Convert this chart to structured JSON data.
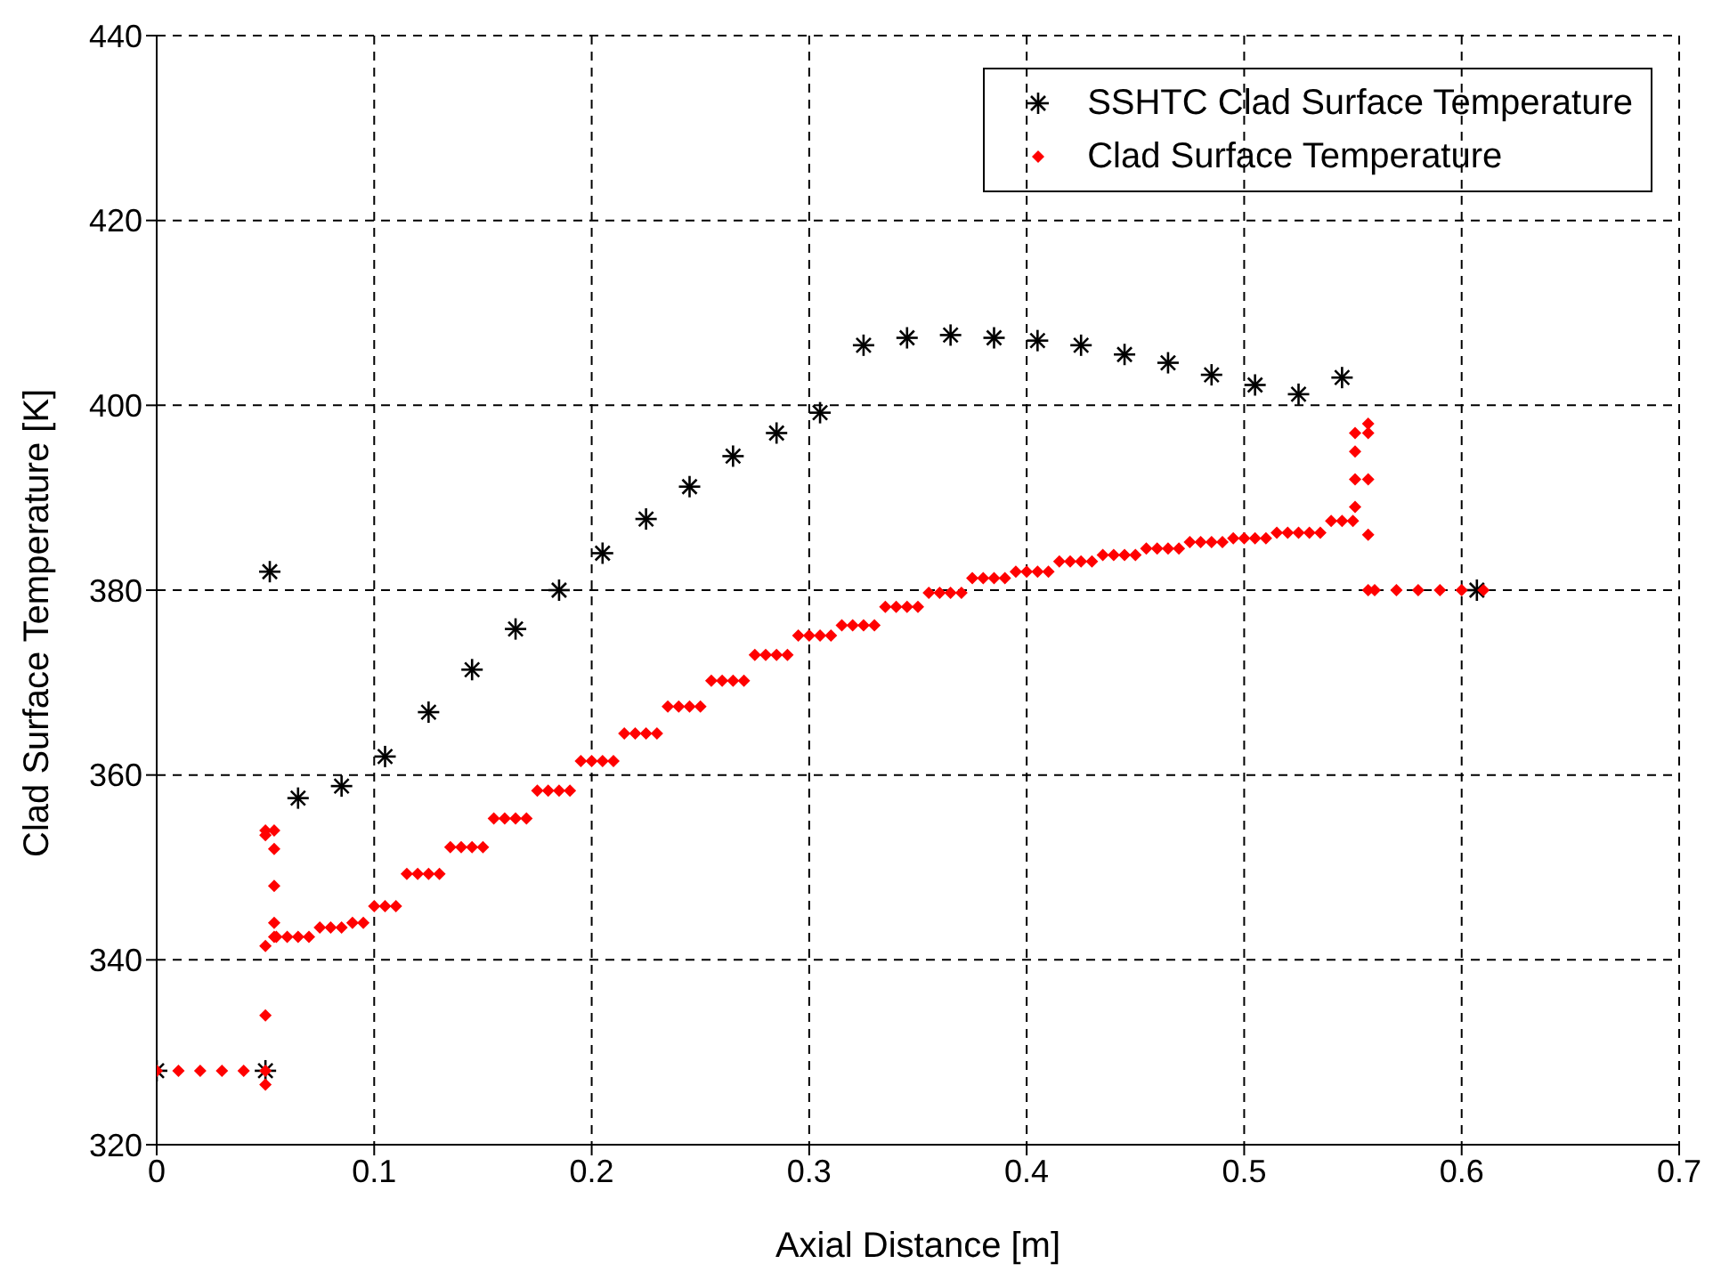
{
  "chart_data": {
    "type": "scatter",
    "xlabel": "Axial Distance [m]",
    "ylabel": "Clad Surface Temperature [K]",
    "xlim": [
      0,
      0.7
    ],
    "xticks": [
      0,
      0.1,
      0.2,
      0.3,
      0.4,
      0.5,
      0.6,
      0.7
    ],
    "ylim": [
      320,
      440
    ],
    "yticks": [
      320,
      340,
      360,
      380,
      400,
      420,
      440
    ],
    "grid": true,
    "legend": "top right",
    "series": [
      {
        "name": "SSHTC Clad Surface Temperature",
        "color": "#000000",
        "marker": "cross",
        "x": [
          0,
          0.05,
          0.052,
          0.065,
          0.085,
          0.105,
          0.125,
          0.145,
          0.165,
          0.185,
          0.205,
          0.225,
          0.245,
          0.265,
          0.285,
          0.305,
          0.325,
          0.345,
          0.365,
          0.385,
          0.405,
          0.425,
          0.445,
          0.465,
          0.485,
          0.505,
          0.525,
          0.545,
          0.607
        ],
        "values": [
          328,
          328,
          382,
          357.5,
          358.8,
          362,
          366.8,
          371.4,
          375.8,
          380,
          384,
          387.7,
          391.2,
          394.5,
          397,
          399.2,
          406.5,
          407.3,
          407.6,
          407.3,
          407,
          406.5,
          405.5,
          404.6,
          403.3,
          402.2,
          401.2,
          403,
          380
        ]
      },
      {
        "name": "Clad Surface Temperature",
        "color": "#ff0000",
        "marker": "diamond",
        "x": [
          0,
          0.01,
          0.02,
          0.03,
          0.04,
          0.05,
          0.05,
          0.05,
          0.05,
          0.05,
          0.05,
          0.054,
          0.054,
          0.054,
          0.054,
          0.054,
          0.055,
          0.06,
          0.065,
          0.07,
          0.075,
          0.08,
          0.085,
          0.09,
          0.095,
          0.1,
          0.105,
          0.11,
          0.115,
          0.12,
          0.125,
          0.13,
          0.135,
          0.14,
          0.145,
          0.15,
          0.155,
          0.16,
          0.165,
          0.17,
          0.175,
          0.18,
          0.185,
          0.19,
          0.195,
          0.2,
          0.205,
          0.21,
          0.215,
          0.22,
          0.225,
          0.23,
          0.235,
          0.24,
          0.245,
          0.25,
          0.255,
          0.26,
          0.265,
          0.27,
          0.275,
          0.28,
          0.285,
          0.29,
          0.295,
          0.3,
          0.305,
          0.31,
          0.315,
          0.32,
          0.325,
          0.33,
          0.335,
          0.34,
          0.345,
          0.35,
          0.355,
          0.36,
          0.365,
          0.37,
          0.375,
          0.38,
          0.385,
          0.39,
          0.395,
          0.4,
          0.405,
          0.41,
          0.415,
          0.42,
          0.425,
          0.43,
          0.435,
          0.44,
          0.445,
          0.45,
          0.455,
          0.46,
          0.465,
          0.47,
          0.475,
          0.48,
          0.485,
          0.49,
          0.495,
          0.5,
          0.505,
          0.51,
          0.515,
          0.52,
          0.525,
          0.53,
          0.535,
          0.54,
          0.545,
          0.55,
          0.551,
          0.551,
          0.551,
          0.551,
          0.557,
          0.557,
          0.557,
          0.557,
          0.557,
          0.56,
          0.57,
          0.58,
          0.59,
          0.6,
          0.61
        ],
        "values": [
          328,
          328,
          328,
          328,
          328,
          328,
          326.5,
          334,
          341.5,
          353.5,
          354,
          354,
          352,
          348,
          344,
          342.5,
          342.5,
          342.5,
          342.5,
          342.5,
          343.5,
          343.5,
          343.5,
          344,
          344,
          345.8,
          345.8,
          345.8,
          349.3,
          349.3,
          349.3,
          349.3,
          352.2,
          352.2,
          352.2,
          352.2,
          355.3,
          355.3,
          355.3,
          355.3,
          358.3,
          358.3,
          358.3,
          358.3,
          361.5,
          361.5,
          361.5,
          361.5,
          364.5,
          364.5,
          364.5,
          364.5,
          367.4,
          367.4,
          367.4,
          367.4,
          370.2,
          370.2,
          370.2,
          370.2,
          373,
          373,
          373,
          373,
          375.1,
          375.1,
          375.1,
          375.1,
          376.2,
          376.2,
          376.2,
          376.2,
          378.2,
          378.2,
          378.2,
          378.2,
          379.7,
          379.7,
          379.7,
          379.7,
          381.3,
          381.3,
          381.3,
          381.3,
          382,
          382,
          382,
          382,
          383.1,
          383.1,
          383.1,
          383.1,
          383.8,
          383.8,
          383.8,
          383.8,
          384.5,
          384.5,
          384.5,
          384.5,
          385.2,
          385.2,
          385.2,
          385.2,
          385.6,
          385.6,
          385.6,
          385.6,
          386.2,
          386.2,
          386.2,
          386.2,
          386.2,
          387.5,
          387.5,
          387.5,
          389,
          392,
          395,
          397,
          398,
          397,
          392,
          386,
          380,
          380,
          380,
          380,
          380,
          380,
          380
        ]
      }
    ]
  }
}
